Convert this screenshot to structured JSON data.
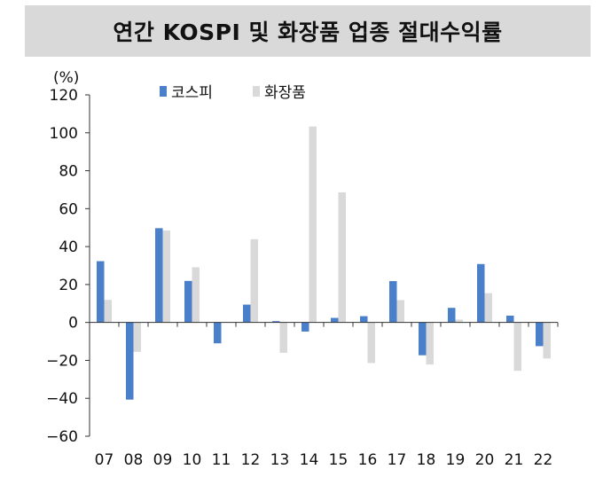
{
  "chart_data": {
    "type": "bar",
    "title": "연간 KOSPI 및 화장품 업종 절대수익률",
    "unit_label": "(%)",
    "categories": [
      "07",
      "08",
      "09",
      "10",
      "11",
      "12",
      "13",
      "14",
      "15",
      "16",
      "17",
      "18",
      "19",
      "20",
      "21",
      "22"
    ],
    "series": [
      {
        "name": "코스피",
        "color": "#4a7fc9",
        "values": [
          32.3,
          -40.7,
          49.7,
          21.9,
          -11.0,
          9.4,
          0.7,
          -4.8,
          2.4,
          3.3,
          21.8,
          -17.3,
          7.7,
          30.8,
          3.6,
          -12.5
        ]
      },
      {
        "name": "화장품",
        "color": "#d9d9d9",
        "values": [
          11.9,
          -15.5,
          48.5,
          29.1,
          0.0,
          43.9,
          -16.0,
          103.3,
          68.6,
          -21.4,
          11.8,
          -22.2,
          1.5,
          15.4,
          -25.5,
          -19.0
        ]
      }
    ],
    "ylim": [
      -60,
      120
    ],
    "yticks": [
      "120",
      "100",
      "80",
      "60",
      "40",
      "20",
      "0",
      "−20",
      "−40",
      "−60"
    ],
    "ytick_values": [
      120,
      100,
      80,
      60,
      40,
      20,
      0,
      -20,
      -40,
      -60
    ],
    "legend_position": "top-left",
    "grid": false
  }
}
